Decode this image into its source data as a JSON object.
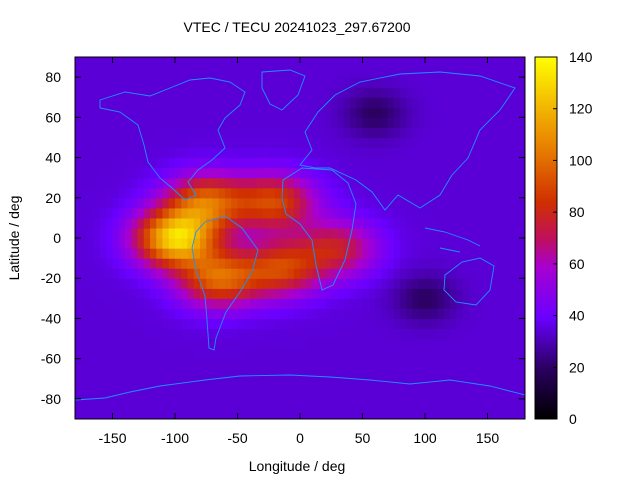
{
  "chart_data": {
    "type": "heatmap",
    "title": "VTEC / TECU 20241023_297.67200",
    "xlabel": "Longitude / deg",
    "ylabel": "Latitude / deg",
    "xlim": [
      -180,
      180
    ],
    "ylim": [
      -90,
      90
    ],
    "x_ticks": [
      -150,
      -100,
      -50,
      0,
      50,
      100,
      150
    ],
    "y_ticks": [
      -80,
      -60,
      -40,
      -20,
      0,
      20,
      40,
      60,
      80
    ],
    "colorbar": {
      "min": 0,
      "max": 140,
      "ticks": [
        0,
        20,
        40,
        60,
        80,
        100,
        120,
        140
      ],
      "palette": "black-purple-red-orange-yellow"
    },
    "background_level": 35,
    "features": [
      {
        "name": "equatorial-crest-americas",
        "lon": -100,
        "lat": 0,
        "value": 125
      },
      {
        "name": "anomaly-north",
        "lon": -75,
        "lat": 18,
        "value": 95
      },
      {
        "name": "anomaly-south",
        "lon": -65,
        "lat": -20,
        "value": 95
      },
      {
        "name": "atlantic-north-crest",
        "lon": -20,
        "lat": 18,
        "value": 88
      },
      {
        "name": "atlantic-south-crest",
        "lon": -15,
        "lat": -15,
        "value": 85
      },
      {
        "name": "africa-crest",
        "lon": 30,
        "lat": -5,
        "value": 75
      },
      {
        "name": "indian-ocean-trough",
        "lon": 100,
        "lat": -30,
        "value": 20
      },
      {
        "name": "siberia-trough",
        "lon": 60,
        "lat": 62,
        "value": 20
      }
    ],
    "overlay": "coastlines",
    "coastline_color": "#1e90ff"
  }
}
